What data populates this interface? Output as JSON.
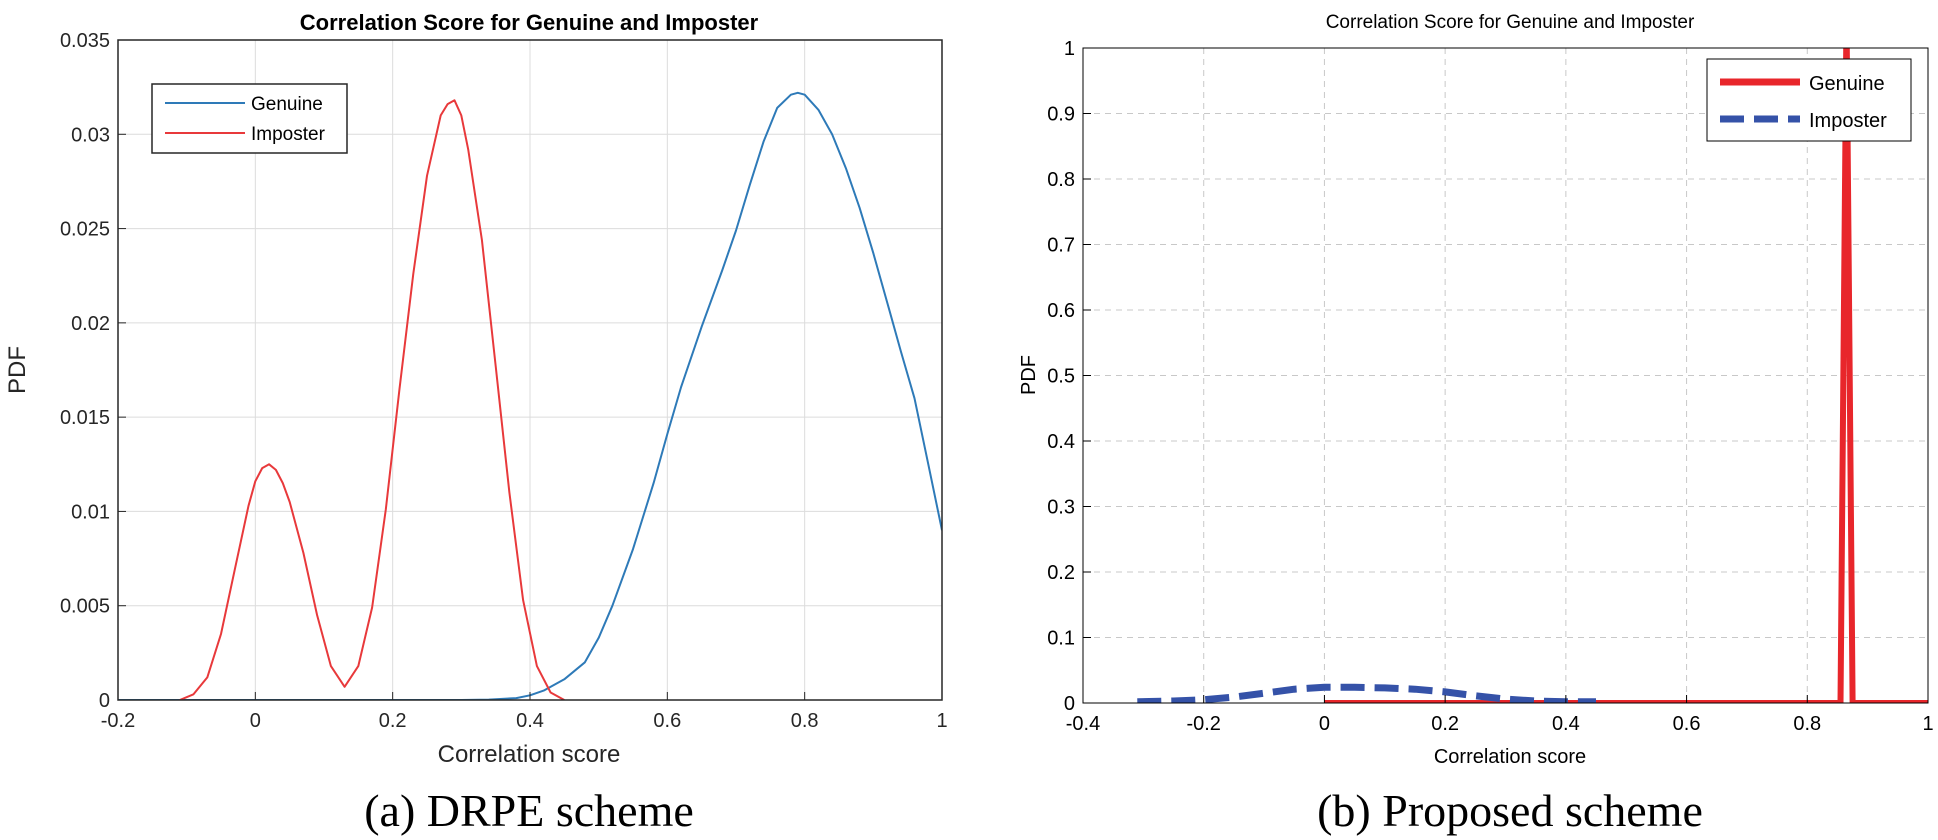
{
  "chart_data": [
    {
      "type": "line",
      "title": "Correlation Score for Genuine and Imposter",
      "xlabel": "Correlation score",
      "ylabel": "PDF",
      "caption": "(a) DRPE scheme",
      "xlim": [
        -0.2,
        1
      ],
      "ylim": [
        0,
        0.035
      ],
      "xticks": [
        -0.2,
        0,
        0.2,
        0.4,
        0.6,
        0.8,
        1
      ],
      "xtick_labels": [
        "-0.2",
        "0",
        "0.2",
        "0.4",
        "0.6",
        "0.8",
        "1"
      ],
      "yticks": [
        0,
        0.005,
        0.01,
        0.015,
        0.02,
        0.025,
        0.03,
        0.035
      ],
      "ytick_labels": [
        "0",
        "0.005",
        "0.01",
        "0.015",
        "0.02",
        "0.025",
        "0.03",
        "0.035"
      ],
      "grid": true,
      "legend_position": "top-left",
      "series": [
        {
          "name": "Genuine",
          "color": "#2e7ab8",
          "x": [
            -0.2,
            0.3,
            0.34,
            0.38,
            0.4,
            0.42,
            0.45,
            0.48,
            0.5,
            0.52,
            0.55,
            0.58,
            0.6,
            0.62,
            0.65,
            0.68,
            0.7,
            0.72,
            0.74,
            0.76,
            0.78,
            0.79,
            0.8,
            0.82,
            0.84,
            0.86,
            0.88,
            0.9,
            0.92,
            0.94,
            0.96,
            0.98,
            1.0
          ],
          "y": [
            0,
            0,
            2e-05,
            0.0001,
            0.00025,
            0.0005,
            0.0011,
            0.002,
            0.0033,
            0.005,
            0.008,
            0.0115,
            0.0141,
            0.0166,
            0.0198,
            0.0228,
            0.0249,
            0.0273,
            0.0296,
            0.0314,
            0.0321,
            0.0322,
            0.0321,
            0.0313,
            0.03,
            0.0282,
            0.0261,
            0.0237,
            0.0211,
            0.0185,
            0.016,
            0.0125,
            0.009
          ]
        },
        {
          "name": "Imposter",
          "color": "#e8393b",
          "x": [
            -0.11,
            -0.09,
            -0.07,
            -0.05,
            -0.03,
            -0.01,
            0.0,
            0.01,
            0.02,
            0.03,
            0.04,
            0.05,
            0.07,
            0.09,
            0.11,
            0.13,
            0.15,
            0.17,
            0.19,
            0.21,
            0.23,
            0.25,
            0.27,
            0.28,
            0.29,
            0.3,
            0.31,
            0.33,
            0.35,
            0.37,
            0.39,
            0.41,
            0.43,
            0.45
          ],
          "y": [
            0,
            0.0003,
            0.0012,
            0.0035,
            0.0069,
            0.0103,
            0.0116,
            0.0123,
            0.0125,
            0.0122,
            0.0115,
            0.0105,
            0.0078,
            0.0045,
            0.0018,
            0.0007,
            0.0018,
            0.0049,
            0.0101,
            0.0165,
            0.0226,
            0.0278,
            0.031,
            0.0316,
            0.0318,
            0.031,
            0.0292,
            0.0244,
            0.0177,
            0.011,
            0.0053,
            0.0018,
            0.0004,
            0
          ]
        }
      ]
    },
    {
      "type": "line",
      "title": "Correlation Score for Genuine and Imposter",
      "xlabel": "Correlation score",
      "ylabel": "PDF",
      "caption": "(b)  Proposed  scheme",
      "xlim": [
        -0.4,
        1
      ],
      "ylim": [
        0,
        1
      ],
      "xticks": [
        -0.4,
        -0.2,
        0,
        0.2,
        0.4,
        0.6,
        0.8,
        1
      ],
      "xtick_labels": [
        "-0.4",
        "-0.2",
        "0",
        "0.2",
        "0.4",
        "0.6",
        "0.8",
        "1"
      ],
      "yticks": [
        0,
        0.1,
        0.2,
        0.3,
        0.4,
        0.5,
        0.6,
        0.7,
        0.8,
        0.9,
        1
      ],
      "ytick_labels": [
        "0",
        "0.1",
        "0.2",
        "0.3",
        "0.4",
        "0.5",
        "0.6",
        "0.7",
        "0.8",
        "0.9",
        "1"
      ],
      "grid": true,
      "legend_position": "top-right",
      "series": [
        {
          "name": "Genuine",
          "color": "#e8262b",
          "style": "solid",
          "x": [
            0,
            0.855,
            0.865,
            0.875,
            1.0
          ],
          "y": [
            0,
            0,
            1.05,
            0,
            0
          ]
        },
        {
          "name": "Imposter",
          "color": "#3552a8",
          "style": "dashed",
          "x": [
            -0.31,
            -0.25,
            -0.2,
            -0.15,
            -0.1,
            -0.05,
            0.0,
            0.05,
            0.1,
            0.15,
            0.2,
            0.25,
            0.3,
            0.35,
            0.4,
            0.45
          ],
          "y": [
            0.002,
            0.003,
            0.005,
            0.009,
            0.015,
            0.021,
            0.024,
            0.024,
            0.023,
            0.021,
            0.017,
            0.011,
            0.006,
            0.003,
            0.002,
            0.002
          ]
        }
      ]
    }
  ]
}
